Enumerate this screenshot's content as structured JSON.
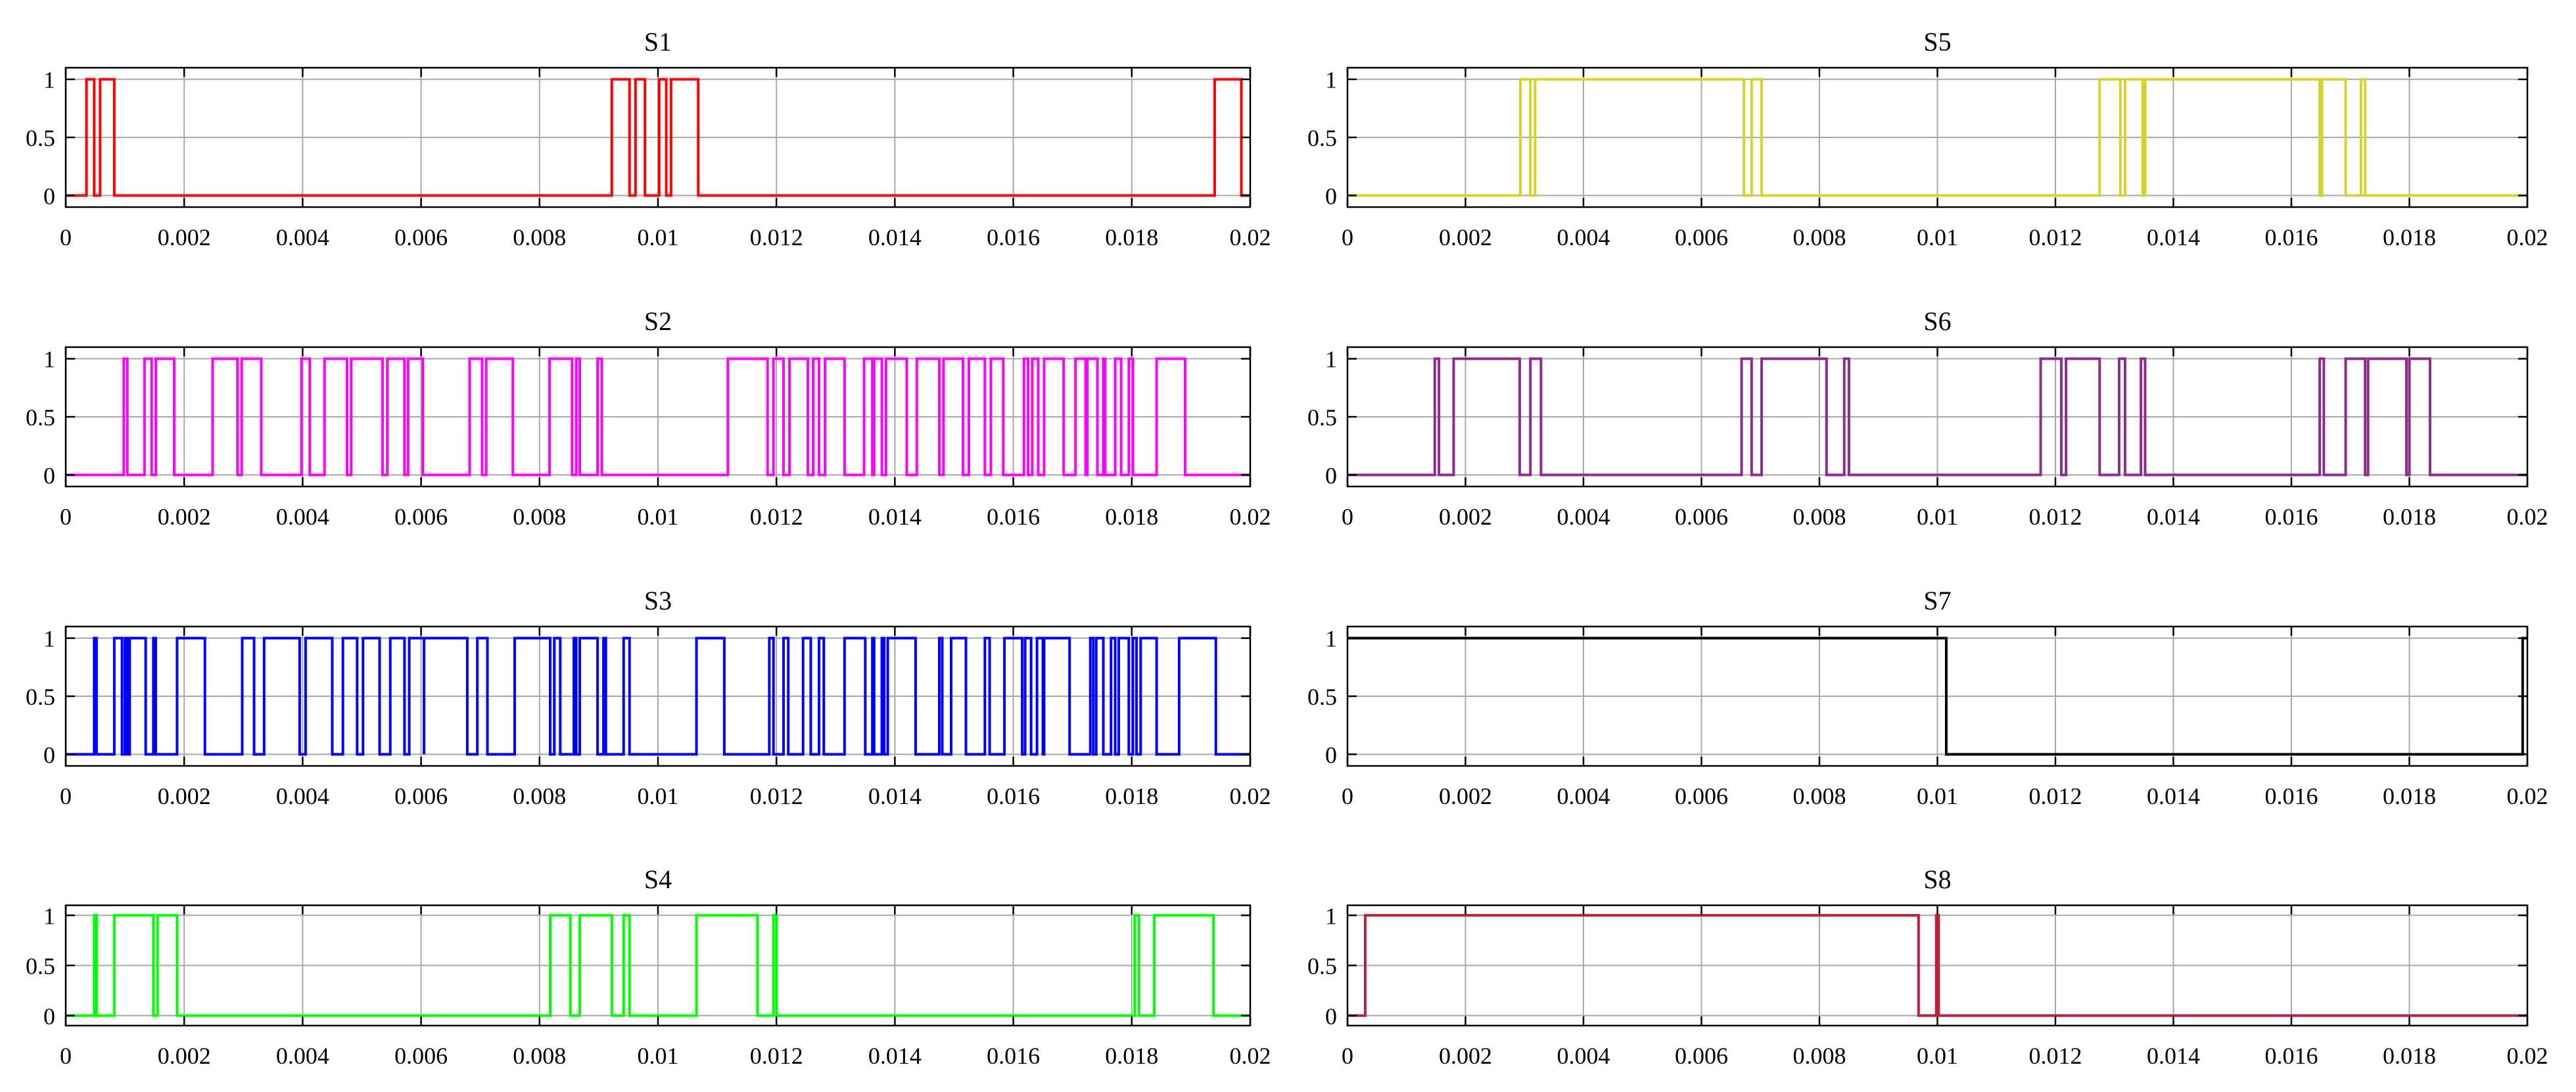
{
  "chart_data": [
    {
      "type": "line",
      "title": "S1",
      "color": "#ff0000",
      "xlim": [
        0,
        0.02
      ],
      "ylim": [
        -0.1,
        1.1
      ],
      "xticks": [
        "0",
        "0.002",
        "0.004",
        "0.006",
        "0.008",
        "0.01",
        "0.012",
        "0.014",
        "0.016",
        "0.018",
        "0.02"
      ],
      "yticks": [
        "0",
        "0.5",
        "1"
      ],
      "grid": true,
      "series": [
        {
          "high_intervals": [
            [
              0.00035,
              0.00048
            ],
            [
              0.00058,
              0.00082
            ],
            [
              0.00922,
              0.00952
            ],
            [
              0.00962,
              0.00978
            ],
            [
              0.01002,
              0.01014
            ],
            [
              0.01022,
              0.01068
            ],
            [
              0.0194,
              0.01985
            ]
          ]
        }
      ]
    },
    {
      "type": "line",
      "title": "S2",
      "color": "#ff00ff",
      "xlim": [
        0,
        0.02
      ],
      "ylim": [
        -0.1,
        1.1
      ],
      "xticks": [
        "0",
        "0.002",
        "0.004",
        "0.006",
        "0.008",
        "0.01",
        "0.012",
        "0.014",
        "0.016",
        "0.018",
        "0.02"
      ],
      "yticks": [
        "0",
        "0.5",
        "1"
      ],
      "grid": true,
      "series": [
        {
          "high_intervals": [
            [
              0.00098,
              0.00104
            ],
            [
              0.00133,
              0.00145
            ],
            [
              0.00152,
              0.00183
            ],
            [
              0.00248,
              0.0029
            ],
            [
              0.00297,
              0.0033
            ],
            [
              0.00398,
              0.00412
            ],
            [
              0.00437,
              0.00475
            ],
            [
              0.00482,
              0.00535
            ],
            [
              0.00543,
              0.00572
            ],
            [
              0.00578,
              0.00603
            ],
            [
              0.00682,
              0.00703
            ],
            [
              0.0071,
              0.00755
            ],
            [
              0.00817,
              0.00855
            ],
            [
              0.00862,
              0.00868
            ],
            [
              0.00898,
              0.00905
            ],
            [
              0.01118,
              0.01185
            ],
            [
              0.01195,
              0.01212
            ],
            [
              0.01222,
              0.01253
            ],
            [
              0.01262,
              0.01272
            ],
            [
              0.01282,
              0.01315
            ],
            [
              0.01348,
              0.01362
            ],
            [
              0.01365,
              0.01378
            ],
            [
              0.01385,
              0.0142
            ],
            [
              0.01437,
              0.01475
            ],
            [
              0.01482,
              0.01515
            ],
            [
              0.01525,
              0.01552
            ],
            [
              0.01562,
              0.01583
            ],
            [
              0.01618,
              0.01625
            ],
            [
              0.01632,
              0.01642
            ],
            [
              0.01652,
              0.01685
            ],
            [
              0.01705,
              0.01722
            ],
            [
              0.01725,
              0.01742
            ],
            [
              0.01752,
              0.01755
            ],
            [
              0.01772,
              0.01782
            ],
            [
              0.01795,
              0.01802
            ],
            [
              0.01842,
              0.0189
            ]
          ]
        }
      ]
    },
    {
      "type": "line",
      "title": "S3",
      "color": "#0000ff",
      "xlim": [
        0,
        0.02
      ],
      "ylim": [
        -0.1,
        1.1
      ],
      "xticks": [
        "0",
        "0.002",
        "0.004",
        "0.006",
        "0.008",
        "0.01",
        "0.012",
        "0.014",
        "0.016",
        "0.018",
        "0.02"
      ],
      "yticks": [
        "0",
        "0.5",
        "1"
      ],
      "grid": true,
      "series": [
        {
          "high_intervals": [
            [
              0.00048,
              0.00052
            ],
            [
              0.00082,
              0.00095
            ],
            [
              0.001,
              0.00104
            ],
            [
              0.00108,
              0.00135
            ],
            [
              0.00148,
              0.00152
            ],
            [
              0.00188,
              0.00235
            ],
            [
              0.00298,
              0.00318
            ],
            [
              0.00335,
              0.00395
            ],
            [
              0.00405,
              0.0045
            ],
            [
              0.00468,
              0.00492
            ],
            [
              0.00502,
              0.0053
            ],
            [
              0.00548,
              0.00572
            ],
            [
              0.0058,
              0.00605
            ],
            [
              0.00605,
              0.00678
            ],
            [
              0.00695,
              0.00712
            ],
            [
              0.00758,
              0.00818
            ],
            [
              0.00825,
              0.00835
            ],
            [
              0.00858,
              0.00862
            ],
            [
              0.00868,
              0.00898
            ],
            [
              0.00908,
              0.00912
            ],
            [
              0.00942,
              0.00952
            ],
            [
              0.01065,
              0.01112
            ],
            [
              0.01188,
              0.01195
            ],
            [
              0.01212,
              0.0122
            ],
            [
              0.01245,
              0.01258
            ],
            [
              0.01272,
              0.0128
            ],
            [
              0.01315,
              0.0135
            ],
            [
              0.01362,
              0.01365
            ],
            [
              0.01378,
              0.01382
            ],
            [
              0.01388,
              0.01435
            ],
            [
              0.01475,
              0.0148
            ],
            [
              0.01495,
              0.0152
            ],
            [
              0.01552,
              0.0156
            ],
            [
              0.01585,
              0.01615
            ],
            [
              0.0162,
              0.0163
            ],
            [
              0.0164,
              0.0165
            ],
            [
              0.01652,
              0.01695
            ],
            [
              0.0173,
              0.01735
            ],
            [
              0.0174,
              0.01752
            ],
            [
              0.01765,
              0.01772
            ],
            [
              0.01778,
              0.01795
            ],
            [
              0.01802,
              0.01808
            ],
            [
              0.01815,
              0.01842
            ],
            [
              0.0188,
              0.01942
            ]
          ]
        }
      ]
    },
    {
      "type": "line",
      "title": "S4",
      "color": "#00ff00",
      "xlim": [
        0,
        0.02
      ],
      "ylim": [
        -0.1,
        1.1
      ],
      "xticks": [
        "0",
        "0.002",
        "0.004",
        "0.006",
        "0.008",
        "0.01",
        "0.012",
        "0.014",
        "0.016",
        "0.018",
        "0.02"
      ],
      "yticks": [
        "0",
        "0.5",
        "1"
      ],
      "grid": true,
      "series": [
        {
          "high_intervals": [
            [
              0.00048,
              0.00052
            ],
            [
              0.00082,
              0.00148
            ],
            [
              0.00155,
              0.00188
            ],
            [
              0.00818,
              0.00852
            ],
            [
              0.00868,
              0.00922
            ],
            [
              0.00942,
              0.00952
            ],
            [
              0.01065,
              0.01168
            ],
            [
              0.01195,
              0.012
            ],
            [
              0.01805,
              0.01812
            ],
            [
              0.01838,
              0.01938
            ]
          ]
        }
      ]
    },
    {
      "type": "line",
      "title": "S5",
      "color": "#d4d42a",
      "xlim": [
        0,
        0.02
      ],
      "ylim": [
        -0.1,
        1.1
      ],
      "xticks": [
        "0",
        "0.002",
        "0.004",
        "0.006",
        "0.008",
        "0.01",
        "0.012",
        "0.014",
        "0.016",
        "0.018",
        "0.02"
      ],
      "yticks": [
        "0",
        "0.5",
        "1"
      ],
      "grid": true,
      "series": [
        {
          "high_intervals": [
            [
              0.00293,
              0.0031
            ],
            [
              0.00318,
              0.00672
            ],
            [
              0.00685,
              0.00702
            ],
            [
              0.01275,
              0.0131
            ],
            [
              0.01318,
              0.01348
            ],
            [
              0.01352,
              0.01648
            ],
            [
              0.01652,
              0.01692
            ],
            [
              0.01718,
              0.01725
            ]
          ]
        }
      ]
    },
    {
      "type": "line",
      "title": "S6",
      "color": "#8e2c8e",
      "xlim": [
        0,
        0.02
      ],
      "ylim": [
        -0.1,
        1.1
      ],
      "xticks": [
        "0",
        "0.002",
        "0.004",
        "0.006",
        "0.008",
        "0.01",
        "0.012",
        "0.014",
        "0.016",
        "0.018",
        "0.02"
      ],
      "yticks": [
        "0",
        "0.5",
        "1"
      ],
      "grid": true,
      "series": [
        {
          "high_intervals": [
            [
              0.00148,
              0.00155
            ],
            [
              0.0018,
              0.00292
            ],
            [
              0.0031,
              0.00328
            ],
            [
              0.00668,
              0.00685
            ],
            [
              0.00702,
              0.00812
            ],
            [
              0.00842,
              0.0085
            ],
            [
              0.01175,
              0.0121
            ],
            [
              0.01218,
              0.01275
            ],
            [
              0.01308,
              0.01318
            ],
            [
              0.01345,
              0.01352
            ],
            [
              0.01648,
              0.01655
            ],
            [
              0.01692,
              0.01725
            ],
            [
              0.0173,
              0.01795
            ],
            [
              0.018,
              0.01835
            ]
          ]
        }
      ]
    },
    {
      "type": "line",
      "title": "S7",
      "color": "#000000",
      "xlim": [
        0,
        0.02
      ],
      "ylim": [
        -0.1,
        1.1
      ],
      "xticks": [
        "0",
        "0.002",
        "0.004",
        "0.006",
        "0.008",
        "0.01",
        "0.012",
        "0.014",
        "0.016",
        "0.018",
        "0.02"
      ],
      "yticks": [
        "0",
        "0.5",
        "1"
      ],
      "grid": true,
      "series": [
        {
          "high_intervals": [
            [
              0.0,
              0.01015
            ],
            [
              0.01992,
              0.02
            ]
          ]
        }
      ]
    },
    {
      "type": "line",
      "title": "S8",
      "color": "#b8203c",
      "xlim": [
        0,
        0.02
      ],
      "ylim": [
        -0.1,
        1.1
      ],
      "xticks": [
        "0",
        "0.002",
        "0.004",
        "0.006",
        "0.008",
        "0.01",
        "0.012",
        "0.014",
        "0.016",
        "0.018",
        "0.02"
      ],
      "yticks": [
        "0",
        "0.5",
        "1"
      ],
      "grid": true,
      "series": [
        {
          "high_intervals": [
            [
              0.0003,
              0.00968
            ],
            [
              0.00998,
              0.01002
            ]
          ]
        }
      ]
    }
  ]
}
